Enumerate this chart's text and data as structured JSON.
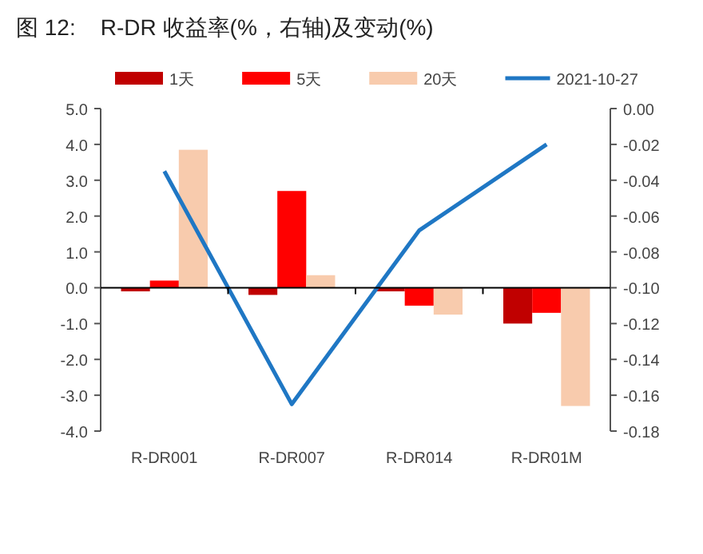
{
  "chart_data": {
    "type": "bar",
    "title": "图 12:    R-DR 收益率(%，右轴)及变动(%)",
    "categories": [
      "R-DR001",
      "R-DR007",
      "R-DR014",
      "R-DR01M"
    ],
    "series": [
      {
        "name": "1天",
        "color": "#c00000",
        "values": [
          -0.1,
          -0.2,
          -0.1,
          -1.0
        ]
      },
      {
        "name": "5天",
        "color": "#ff0000",
        "values": [
          0.2,
          2.7,
          -0.5,
          -0.7
        ]
      },
      {
        "name": "20天",
        "color": "#f8cbad",
        "values": [
          3.85,
          0.35,
          -0.75,
          -3.3
        ]
      },
      {
        "name": "2021-10-27",
        "type": "line",
        "axis": "y2",
        "color": "#1f77c4",
        "values": [
          -0.035,
          -0.165,
          -0.068,
          -0.02
        ]
      }
    ],
    "ylim": [
      -4,
      5
    ],
    "yticks": [
      {
        "value": -4,
        "label": "-4.0"
      },
      {
        "value": -3,
        "label": "-3.0"
      },
      {
        "value": -2,
        "label": "-2.0"
      },
      {
        "value": -1,
        "label": "-1.0"
      },
      {
        "value": 0,
        "label": "0.0"
      },
      {
        "value": 1,
        "label": "1.0"
      },
      {
        "value": 2,
        "label": "2.0"
      },
      {
        "value": 3,
        "label": "3.0"
      },
      {
        "value": 4,
        "label": "4.0"
      },
      {
        "value": 5,
        "label": "5.0"
      }
    ],
    "y2lim": [
      -0.18,
      0
    ],
    "y2ticks": [
      {
        "value": -0.18,
        "label": "-0.18"
      },
      {
        "value": -0.16,
        "label": "-0.16"
      },
      {
        "value": -0.14,
        "label": "-0.14"
      },
      {
        "value": -0.12,
        "label": "-0.12"
      },
      {
        "value": -0.1,
        "label": "-0.10"
      },
      {
        "value": -0.08,
        "label": "-0.08"
      },
      {
        "value": -0.06,
        "label": "-0.06"
      },
      {
        "value": -0.04,
        "label": "-0.04"
      },
      {
        "value": -0.02,
        "label": "-0.02"
      },
      {
        "value": 0,
        "label": "0.00"
      }
    ],
    "legend": "top"
  }
}
